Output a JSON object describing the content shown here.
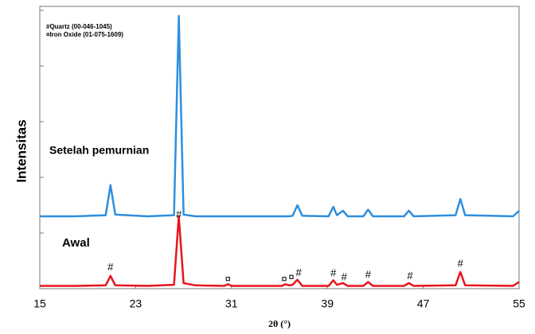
{
  "chart_data": {
    "type": "line",
    "x_label": "2θ (°)",
    "y_label": "Intensitas",
    "x": [
      15,
      18,
      20.5,
      20.9,
      21.3,
      24,
      26.2,
      26.6,
      27.0,
      28,
      30.4,
      30.7,
      31.0,
      35.2,
      35.5,
      35.8,
      36.1,
      36.5,
      36.9,
      39.1,
      39.5,
      39.8,
      40.3,
      40.7,
      42.0,
      42.4,
      42.8,
      45.4,
      45.8,
      46.2,
      49.7,
      50.1,
      50.5,
      54.5,
      55
    ],
    "series": [
      {
        "name": "Setelah pemurnian",
        "color": "#2e8fe0",
        "values": [
          1.3,
          1.3,
          1.32,
          1.86,
          1.33,
          1.3,
          1.32,
          4.9,
          1.33,
          1.3,
          1.3,
          1.3,
          1.3,
          1.3,
          1.3,
          1.3,
          1.31,
          1.5,
          1.31,
          1.3,
          1.47,
          1.32,
          1.4,
          1.3,
          1.3,
          1.42,
          1.3,
          1.3,
          1.4,
          1.3,
          1.32,
          1.61,
          1.32,
          1.3,
          1.4
        ]
      },
      {
        "name": "Awal",
        "color": "#e8141c",
        "values": [
          0.05,
          0.05,
          0.06,
          0.23,
          0.06,
          0.05,
          0.07,
          1.3,
          0.1,
          0.06,
          0.05,
          0.08,
          0.05,
          0.05,
          0.08,
          0.06,
          0.07,
          0.16,
          0.05,
          0.05,
          0.15,
          0.07,
          0.1,
          0.05,
          0.05,
          0.12,
          0.05,
          0.05,
          0.1,
          0.05,
          0.06,
          0.3,
          0.06,
          0.05,
          0.12
        ]
      }
    ],
    "xlim": [
      15,
      55
    ],
    "xticks": [
      15,
      23,
      31,
      39,
      47,
      55
    ],
    "ylim": [
      0,
      5
    ],
    "yticks": [
      0,
      1,
      2,
      3,
      4,
      5
    ],
    "legend": [
      "#Quartz (00-046-1045)",
      "¤Iron Oxide (01-075-1609)"
    ],
    "annotations": [
      {
        "text": "#",
        "x": 20.9,
        "y": 0.38
      },
      {
        "text": "#",
        "x": 26.6,
        "y": 1.32
      },
      {
        "text": "¤",
        "x": 30.7,
        "y": 0.16
      },
      {
        "text": "¤",
        "x": 35.4,
        "y": 0.16
      },
      {
        "text": "¤",
        "x": 36.0,
        "y": 0.2
      },
      {
        "text": "#",
        "x": 36.6,
        "y": 0.28
      },
      {
        "text": "#",
        "x": 39.5,
        "y": 0.27
      },
      {
        "text": "#",
        "x": 40.4,
        "y": 0.2
      },
      {
        "text": "#",
        "x": 42.4,
        "y": 0.24
      },
      {
        "text": "#",
        "x": 45.9,
        "y": 0.22
      },
      {
        "text": "#",
        "x": 50.1,
        "y": 0.44
      }
    ]
  }
}
